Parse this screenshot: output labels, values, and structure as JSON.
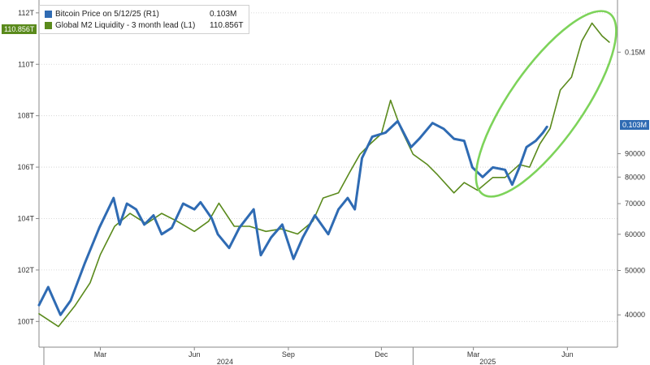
{
  "chart_data": {
    "type": "line",
    "title": "",
    "xlabel": "",
    "ylabel_left": "",
    "ylabel_right": "",
    "x_month_labels": [
      {
        "label": "Mar",
        "date": "2024-03-01"
      },
      {
        "label": "Jun",
        "date": "2024-06-01"
      },
      {
        "label": "Sep",
        "date": "2024-09-01"
      },
      {
        "label": "Dec",
        "date": "2024-12-01"
      },
      {
        "label": "Mar",
        "date": "2025-03-01"
      },
      {
        "label": "Jun",
        "date": "2025-06-01"
      }
    ],
    "x_year_labels": [
      {
        "label": "2024",
        "date": "2024-07-01"
      },
      {
        "label": "2025",
        "date": "2025-03-15"
      }
    ],
    "x_range": [
      "2024-01-01",
      "2025-07-20"
    ],
    "y_left": {
      "ticks": [
        "100T",
        "102T",
        "104T",
        "106T",
        "108T",
        "110T",
        "112T"
      ],
      "range": [
        99,
        112.5
      ]
    },
    "y_right": {
      "ticks": [
        "40000",
        "50000",
        "60000",
        "70000",
        "80000",
        "90000",
        "0.15M"
      ],
      "scale": "log",
      "range": [
        34000,
        195000
      ]
    },
    "grid": true,
    "legend_position": "top-left",
    "series": [
      {
        "name": "Bitcoin Price on 5/12/25 (R1)",
        "last_value": "0.103M",
        "color": "#2f6bb3",
        "axis": "right",
        "points": [
          [
            "2024-01-01",
            42000
          ],
          [
            "2024-01-10",
            46000
          ],
          [
            "2024-01-22",
            40000
          ],
          [
            "2024-02-01",
            43000
          ],
          [
            "2024-02-15",
            52000
          ],
          [
            "2024-02-29",
            62000
          ],
          [
            "2024-03-10",
            69000
          ],
          [
            "2024-03-14",
            72000
          ],
          [
            "2024-03-20",
            63000
          ],
          [
            "2024-03-27",
            70000
          ],
          [
            "2024-04-05",
            68000
          ],
          [
            "2024-04-13",
            63000
          ],
          [
            "2024-04-22",
            66000
          ],
          [
            "2024-04-30",
            60000
          ],
          [
            "2024-05-10",
            62000
          ],
          [
            "2024-05-21",
            70000
          ],
          [
            "2024-06-01",
            68000
          ],
          [
            "2024-06-07",
            70500
          ],
          [
            "2024-06-18",
            65000
          ],
          [
            "2024-06-24",
            60000
          ],
          [
            "2024-07-05",
            56000
          ],
          [
            "2024-07-15",
            62000
          ],
          [
            "2024-07-29",
            68000
          ],
          [
            "2024-08-05",
            54000
          ],
          [
            "2024-08-15",
            59000
          ],
          [
            "2024-08-26",
            63000
          ],
          [
            "2024-09-06",
            53000
          ],
          [
            "2024-09-15",
            59000
          ],
          [
            "2024-09-27",
            66000
          ],
          [
            "2024-10-10",
            60000
          ],
          [
            "2024-10-20",
            68000
          ],
          [
            "2024-10-29",
            72000
          ],
          [
            "2024-11-05",
            68000
          ],
          [
            "2024-11-12",
            88000
          ],
          [
            "2024-11-22",
            98000
          ],
          [
            "2024-12-05",
            100000
          ],
          [
            "2024-12-17",
            106000
          ],
          [
            "2024-12-30",
            93000
          ],
          [
            "2025-01-07",
            97000
          ],
          [
            "2025-01-20",
            105000
          ],
          [
            "2025-01-31",
            102000
          ],
          [
            "2025-02-10",
            97000
          ],
          [
            "2025-02-20",
            96000
          ],
          [
            "2025-02-28",
            84000
          ],
          [
            "2025-03-10",
            80000
          ],
          [
            "2025-03-20",
            84000
          ],
          [
            "2025-04-01",
            83000
          ],
          [
            "2025-04-08",
            77000
          ],
          [
            "2025-04-15",
            84000
          ],
          [
            "2025-04-22",
            93000
          ],
          [
            "2025-05-01",
            96000
          ],
          [
            "2025-05-08",
            100000
          ],
          [
            "2025-05-12",
            103000
          ]
        ]
      },
      {
        "name": "Global M2 Liquidity - 3 month lead (L1)",
        "last_value": "110.856T",
        "color": "#5a8a1c",
        "axis": "left",
        "points": [
          [
            "2024-01-01",
            100.3
          ],
          [
            "2024-01-20",
            99.8
          ],
          [
            "2024-02-05",
            100.6
          ],
          [
            "2024-02-20",
            101.5
          ],
          [
            "2024-03-01",
            102.6
          ],
          [
            "2024-03-15",
            103.7
          ],
          [
            "2024-03-30",
            104.2
          ],
          [
            "2024-04-15",
            103.8
          ],
          [
            "2024-04-30",
            104.2
          ],
          [
            "2024-05-15",
            103.9
          ],
          [
            "2024-06-01",
            103.5
          ],
          [
            "2024-06-15",
            103.9
          ],
          [
            "2024-06-25",
            104.6
          ],
          [
            "2024-07-10",
            103.7
          ],
          [
            "2024-07-25",
            103.7
          ],
          [
            "2024-08-10",
            103.5
          ],
          [
            "2024-08-25",
            103.6
          ],
          [
            "2024-09-10",
            103.4
          ],
          [
            "2024-09-25",
            103.9
          ],
          [
            "2024-10-05",
            104.8
          ],
          [
            "2024-10-20",
            105.0
          ],
          [
            "2024-10-31",
            105.8
          ],
          [
            "2024-11-10",
            106.5
          ],
          [
            "2024-11-20",
            106.9
          ],
          [
            "2024-12-01",
            107.3
          ],
          [
            "2024-12-10",
            108.6
          ],
          [
            "2024-12-20",
            107.5
          ],
          [
            "2025-01-01",
            106.5
          ],
          [
            "2025-01-15",
            106.1
          ],
          [
            "2025-01-25",
            105.7
          ],
          [
            "2025-02-10",
            105.0
          ],
          [
            "2025-02-20",
            105.4
          ],
          [
            "2025-03-05",
            105.1
          ],
          [
            "2025-03-20",
            105.6
          ],
          [
            "2025-04-01",
            105.6
          ],
          [
            "2025-04-15",
            106.1
          ],
          [
            "2025-04-25",
            106.0
          ],
          [
            "2025-05-05",
            106.9
          ],
          [
            "2025-05-15",
            107.5
          ],
          [
            "2025-05-25",
            109.0
          ],
          [
            "2025-06-05",
            109.5
          ],
          [
            "2025-06-15",
            110.9
          ],
          [
            "2025-06-25",
            111.6
          ],
          [
            "2025-07-05",
            111.1
          ],
          [
            "2025-07-12",
            110.86
          ]
        ]
      }
    ],
    "annotations": [
      {
        "shape": "ellipse",
        "color": "#7dd35a",
        "from": "2025-03-15",
        "to": "2025-07-20"
      }
    ]
  }
}
